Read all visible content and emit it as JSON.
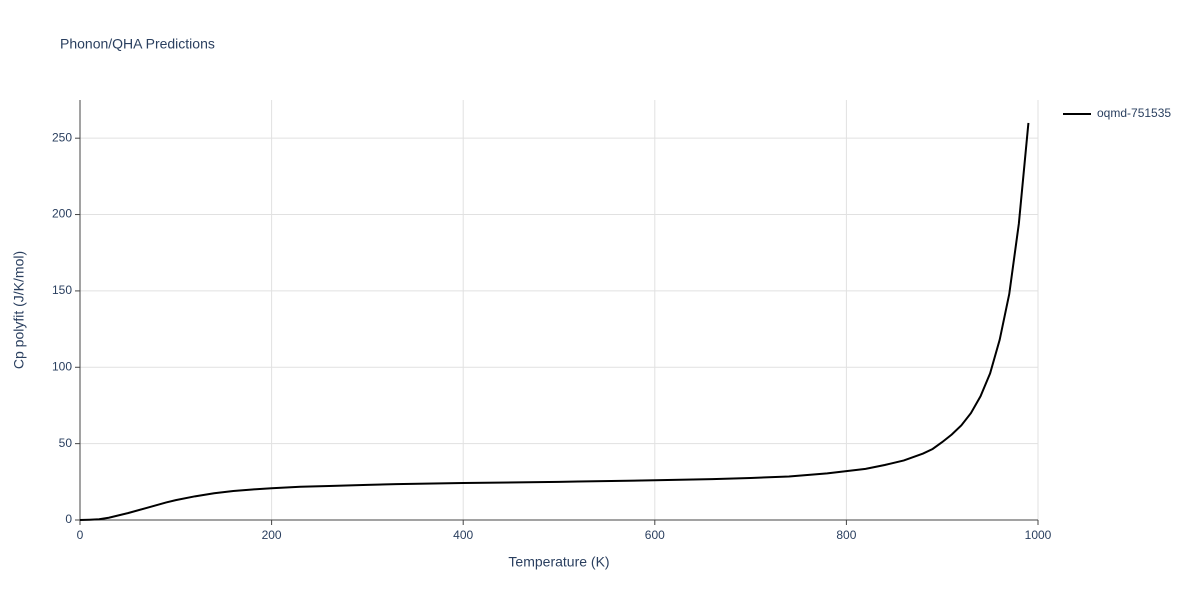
{
  "chart_data": {
    "type": "line",
    "title": "Phonon/QHA Predictions",
    "xlabel": "Temperature (K)",
    "ylabel": "Cp polyfit (J/K/mol)",
    "xlim": [
      0,
      1000
    ],
    "xticks": [
      0,
      200,
      400,
      600,
      800,
      1000
    ],
    "ylim": [
      0,
      275
    ],
    "yticks": [
      0,
      50,
      100,
      150,
      200,
      250
    ],
    "grid": true,
    "legend": "right",
    "x": [
      0,
      10,
      20,
      30,
      50,
      70,
      90,
      100,
      120,
      140,
      160,
      180,
      200,
      230,
      260,
      300,
      330,
      400,
      500,
      520,
      600,
      660,
      700,
      740,
      780,
      800,
      820,
      840,
      860,
      880,
      890,
      900,
      910,
      920,
      930,
      940,
      950,
      960,
      970,
      980,
      990
    ],
    "series": [
      {
        "name": "oqmd-751535",
        "color": "#000000",
        "values": [
          0,
          0.2,
          0.5,
          1.5,
          4.5,
          8,
          11.5,
          13,
          15.5,
          17.5,
          19,
          20,
          20.8,
          21.8,
          22.3,
          23,
          23.5,
          24.2,
          25,
          25.2,
          26,
          26.8,
          27.5,
          28.5,
          30.5,
          32,
          33.5,
          36,
          39,
          43.5,
          46.5,
          51,
          56,
          62,
          70,
          81,
          96,
          118,
          148,
          194,
          260
        ]
      }
    ]
  }
}
